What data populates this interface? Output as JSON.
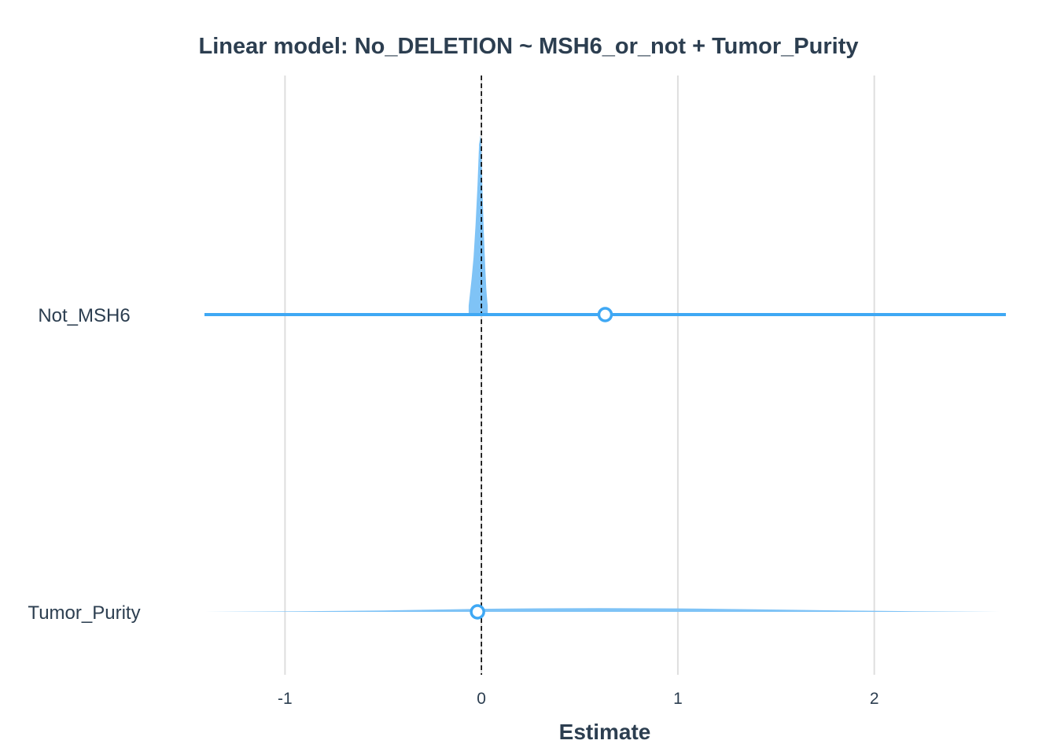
{
  "chart_data": {
    "type": "coefficient-interval-plot",
    "title": "Linear model: No_DELETION ~ MSH6_or_not + Tumor_Purity",
    "xlabel": "Estimate",
    "ylabel": "",
    "xlim": [
      -1.41,
      2.67
    ],
    "x_ticks": [
      -1,
      0,
      1,
      2
    ],
    "x_tick_labels": [
      "-1",
      "0",
      "1",
      "2"
    ],
    "grid": "vertical",
    "reference_line": 0,
    "terms": [
      {
        "name": "Not_MSH6",
        "estimate": 0.63,
        "ci_low": -1.41,
        "ci_high": 2.67,
        "density": {
          "x": [
            -0.065,
            -0.06,
            -0.05,
            -0.04,
            -0.03,
            -0.02,
            -0.012,
            -0.005,
            0.0,
            0.005,
            0.012,
            0.02,
            0.025,
            0.03,
            0.032
          ],
          "y": [
            0.05,
            0.1,
            0.2,
            0.32,
            0.5,
            0.72,
            0.95,
            1.0,
            0.92,
            0.7,
            0.46,
            0.25,
            0.14,
            0.07,
            0.05
          ]
        }
      },
      {
        "name": "Tumor_Purity",
        "estimate": -0.02,
        "ci_low": -1.41,
        "ci_high": 2.67,
        "density": {
          "x": [
            -1.41,
            -1.0,
            -0.5,
            -0.2,
            0.0,
            0.3,
            0.6,
            1.0,
            1.4,
            1.8,
            2.2,
            2.67
          ],
          "y": [
            0.0,
            0.12,
            0.35,
            0.6,
            0.78,
            0.9,
            0.95,
            0.88,
            0.65,
            0.38,
            0.15,
            0.0
          ]
        }
      }
    ],
    "colors": {
      "interval": "#3fa8f4",
      "density": "#7fc3f6",
      "title": "#2c3e50",
      "grid": "#dedede",
      "reference_line": "#000000"
    }
  }
}
